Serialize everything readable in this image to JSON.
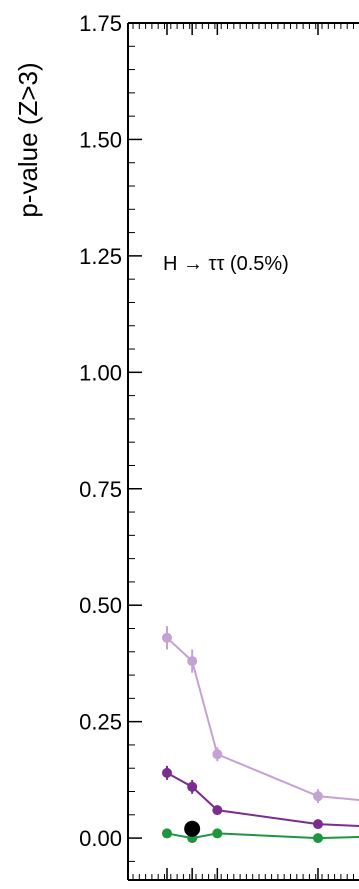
{
  "chart_data": {
    "type": "scatter",
    "ylabel": "p-value (Z>3)",
    "xlabel": "",
    "annotation": "H → ττ (0.5%)",
    "ylim": [
      -0.09,
      1.75
    ],
    "xlim": [
      0,
      22.5
    ],
    "y_ticks": [
      "0.00",
      "0.25",
      "0.50",
      "0.75",
      "1.00",
      "1.25",
      "1.50",
      "1.75"
    ],
    "x_ticks": [
      "4",
      "6",
      "8",
      "16"
    ],
    "grid": false,
    "series": [
      {
        "color": "#c4a3d4",
        "x": [
          4,
          6,
          8,
          16,
          20
        ],
        "y": [
          0.43,
          0.38,
          0.18,
          0.09,
          0.08
        ],
        "err": [
          0.025,
          0.025,
          0.015,
          0.015,
          0.0
        ],
        "line": true
      },
      {
        "color": "#7b2d8e",
        "x": [
          4,
          6,
          8,
          16,
          20
        ],
        "y": [
          0.14,
          0.11,
          0.06,
          0.03,
          0.025
        ],
        "err": [
          0.015,
          0.015,
          0.0,
          0.0,
          0.0
        ],
        "line": true
      },
      {
        "color": "#1e9640",
        "x": [
          4,
          6,
          8,
          16,
          20
        ],
        "y": [
          0.01,
          0.0,
          0.01,
          0.0,
          0.003
        ],
        "err": [
          0,
          0,
          0,
          0,
          0
        ],
        "line": true
      },
      {
        "color": "#000000",
        "x": [
          6
        ],
        "y": [
          0.02
        ],
        "err": [
          0
        ],
        "line": false,
        "big": true
      }
    ]
  }
}
